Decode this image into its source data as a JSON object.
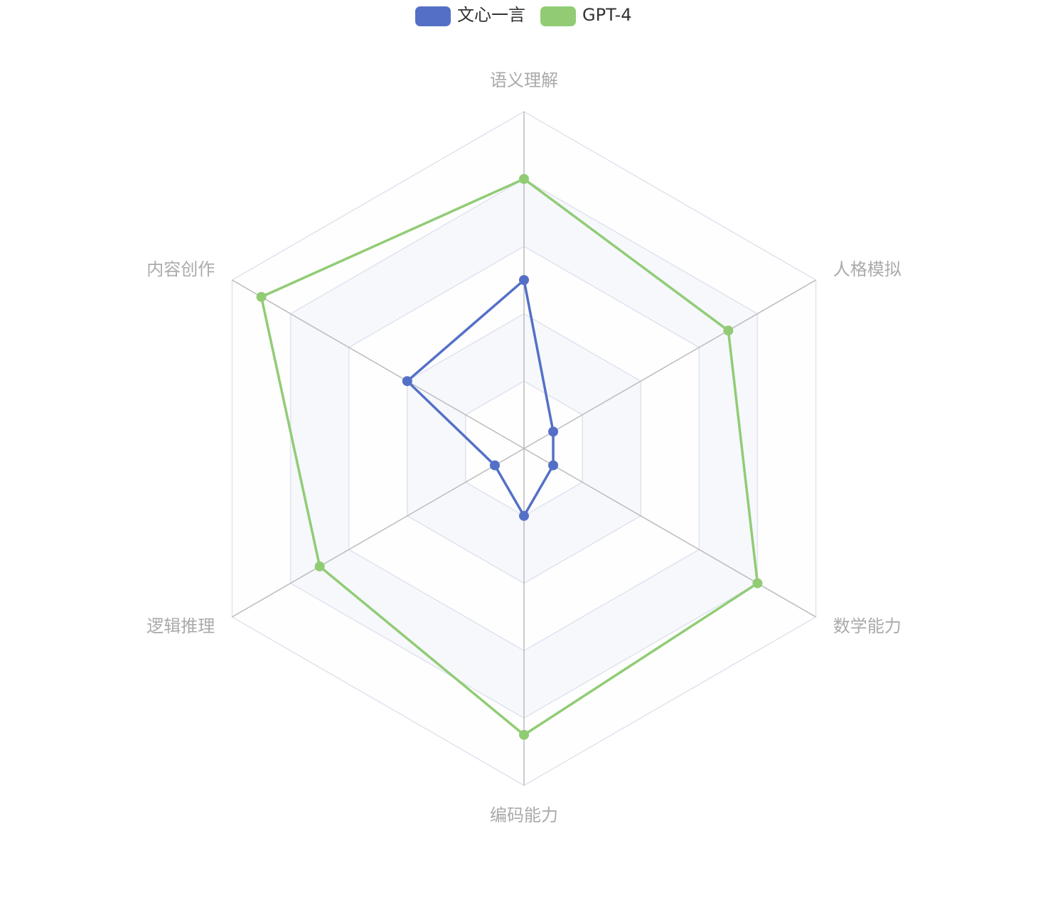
{
  "chart_data": {
    "type": "radar",
    "indicators": [
      "语义理解",
      "人格模拟",
      "数学能力",
      "编码能力",
      "逻辑推理",
      "内容创作"
    ],
    "series": [
      {
        "name": "文心一言",
        "color": "#5470c6",
        "values": [
          50,
          10,
          10,
          20,
          10,
          40
        ]
      },
      {
        "name": "GPT-4",
        "color": "#91cc75",
        "values": [
          80,
          70,
          80,
          85,
          70,
          90
        ]
      }
    ],
    "rlim": [
      0,
      100
    ],
    "rticks": [
      0,
      20,
      40,
      60,
      80,
      100
    ],
    "grid": true,
    "legend": "top"
  }
}
